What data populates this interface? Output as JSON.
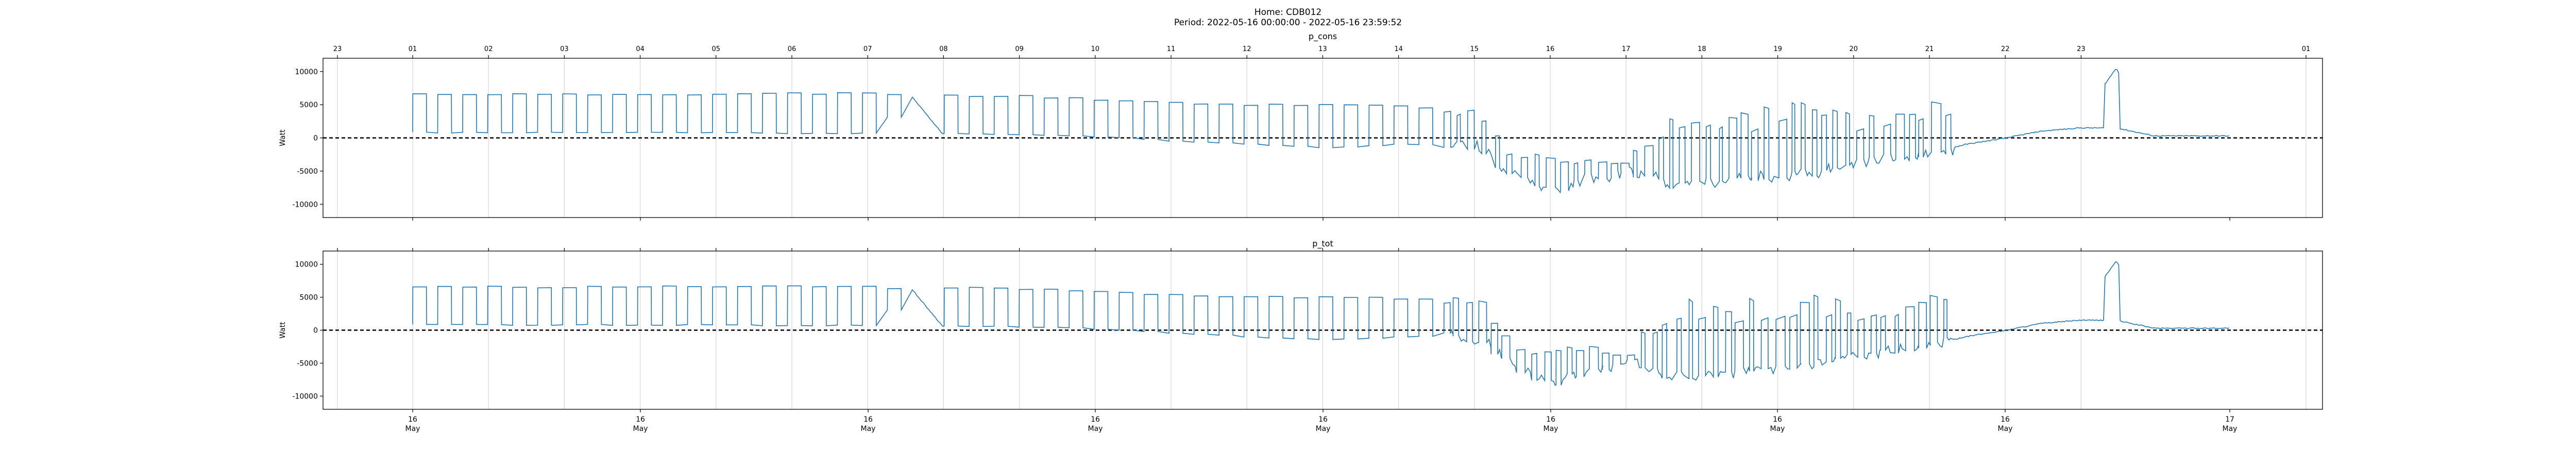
{
  "suptitle": {
    "home": "Home: CDB012",
    "period": "Period: 2022-05-16 00:00:00 - 2022-05-16 23:59:52"
  },
  "chart_data": [
    {
      "type": "line",
      "title": "p_cons",
      "ylabel": "Watt",
      "ylim": [
        -12000,
        12000
      ],
      "yticks": [
        -10000,
        -5000,
        0,
        5000,
        10000
      ],
      "hour_ticks": [
        "23",
        "01",
        "02",
        "03",
        "04",
        "05",
        "06",
        "07",
        "08",
        "09",
        "10",
        "11",
        "12",
        "13",
        "14",
        "15",
        "16",
        "17",
        "18",
        "19",
        "20",
        "21",
        "22",
        "23",
        "01"
      ],
      "grid": "vertical",
      "zero_line": "dashed",
      "color": "#1f77b4",
      "approx_profile": {
        "hours": [
          0,
          1,
          2,
          3,
          4,
          5,
          6,
          6.6,
          7,
          8,
          9,
          10,
          11,
          12,
          13,
          13.5,
          14,
          14.5,
          15,
          15.5,
          16,
          16.5,
          17,
          17.5,
          18,
          18.5,
          19,
          19.5,
          20,
          20.5,
          21,
          21.5,
          22,
          22.5,
          23,
          23.8
        ],
        "high": [
          6600,
          6600,
          6500,
          6600,
          6600,
          6700,
          6700,
          6100,
          6400,
          6300,
          5800,
          5300,
          5000,
          5000,
          4800,
          4500,
          4500,
          -2500,
          -3500,
          -3000,
          -4000,
          2000,
          3000,
          2500,
          4000,
          4000,
          2500,
          3500,
          4000,
          5000,
          -100,
          1000,
          2500,
          10500,
          300,
          300
        ],
        "low": [
          800,
          800,
          800,
          800,
          800,
          700,
          700,
          6100,
          600,
          500,
          200,
          -500,
          -1000,
          -1500,
          -1000,
          -1000,
          -1500,
          -6000,
          -8000,
          -6000,
          -5000,
          -7000,
          -7000,
          -6000,
          -6000,
          -5000,
          -4000,
          -3000,
          -2500,
          -1000,
          -100,
          1000,
          1500,
          1500,
          300,
          300
        ]
      }
    },
    {
      "type": "line",
      "title": "p_tot",
      "ylabel": "Watt",
      "ylim": [
        -12000,
        12000
      ],
      "yticks": [
        -10000,
        -5000,
        0,
        5000,
        10000
      ],
      "x_ticks": [
        "16\nMay",
        "16\nMay",
        "16\nMay",
        "16\nMay",
        "16\nMay",
        "16\nMay",
        "16\nMay",
        "16\nMay",
        "17\nMay"
      ],
      "grid": "vertical",
      "zero_line": "dashed",
      "color": "#1f77b4"
    }
  ]
}
